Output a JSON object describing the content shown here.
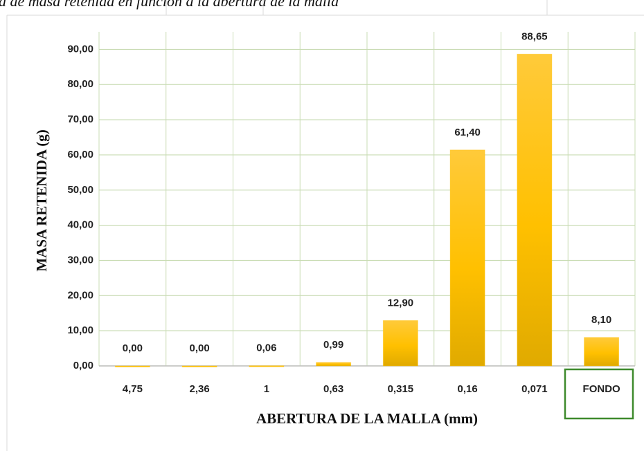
{
  "caption": "a de masa retenida en función a la abertura de la malla",
  "chart_data": {
    "type": "bar",
    "categories": [
      "4,75",
      "2,36",
      "1",
      "0,63",
      "0,315",
      "0,16",
      "0,071",
      "FONDO"
    ],
    "values": [
      0,
      0,
      0.06,
      0.99,
      12.9,
      61.4,
      88.65,
      8.1
    ],
    "value_labels": [
      "0,00",
      "0,00",
      "0,06",
      "0,99",
      "12,90",
      "61,40",
      "88,65",
      "8,10"
    ],
    "color": "#ffc000",
    "xlabel": "ABERTURA DE LA MALLA (mm)",
    "ylabel": "MASA RETENIDA (g)",
    "ylim": [
      0,
      95
    ],
    "yticks": [
      {
        "value": 0,
        "label": "0,00"
      },
      {
        "value": 10,
        "label": "10,00"
      },
      {
        "value": 20,
        "label": "20,00"
      },
      {
        "value": 30,
        "label": "30,00"
      },
      {
        "value": 40,
        "label": "40,00"
      },
      {
        "value": 50,
        "label": "50,00"
      },
      {
        "value": 60,
        "label": "60,00"
      },
      {
        "value": 70,
        "label": "70,00"
      },
      {
        "value": 80,
        "label": "80,00"
      },
      {
        "value": 90,
        "label": "90,00"
      }
    ],
    "grid": true
  }
}
